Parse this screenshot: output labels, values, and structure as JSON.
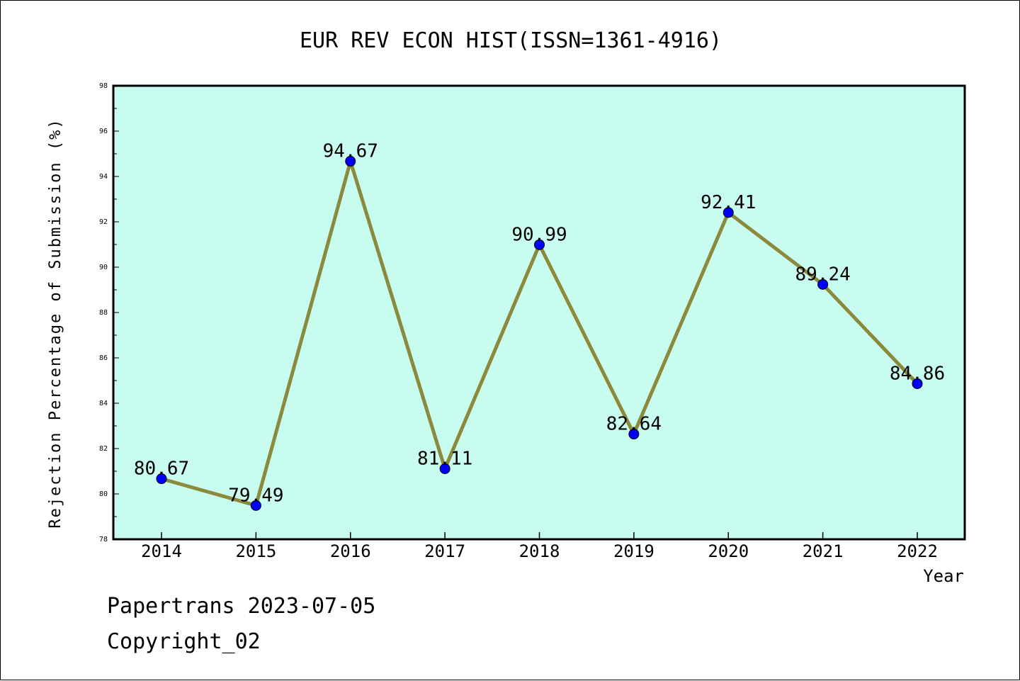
{
  "chart_data": {
    "type": "line",
    "title": "EUR REV ECON HIST(ISSN=1361-4916)",
    "xlabel": "Year",
    "ylabel": "Rejection Percentage of Submission (%)",
    "categories": [
      "2014",
      "2015",
      "2016",
      "2017",
      "2018",
      "2019",
      "2020",
      "2021",
      "2022"
    ],
    "values": [
      80.67,
      79.49,
      94.67,
      81.11,
      90.99,
      82.64,
      92.41,
      89.24,
      84.86
    ],
    "data_labels": [
      "80.67",
      "79.49",
      "94.67",
      "81.11",
      "90.99",
      "82.64",
      "92.41",
      "89.24",
      "84.86"
    ],
    "ylim": [
      78,
      98
    ],
    "yticks": [
      "78",
      "80",
      "82",
      "84",
      "86",
      "88",
      "90",
      "92",
      "94",
      "96",
      "98"
    ],
    "grid": false,
    "colors": {
      "plot_background": "#c8fcee",
      "line": "#8b8a3c",
      "marker": "#0000ff"
    }
  },
  "footer": {
    "line1": "Papertrans 2023-07-05",
    "line2": "Copyright_02"
  }
}
